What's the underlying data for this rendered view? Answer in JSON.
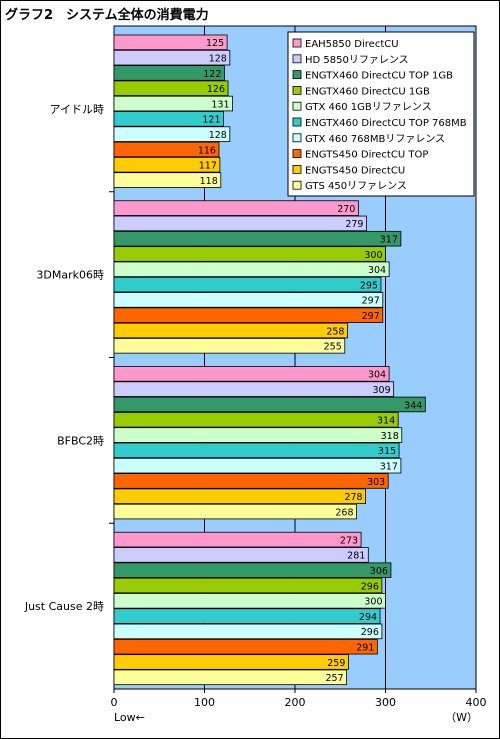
{
  "title": "グラフ2　システム全体の消費電力",
  "chart_data": {
    "type": "bar",
    "orientation": "horizontal",
    "title": "グラフ2　システム全体の消費電力",
    "categories": [
      "アイドル時",
      "3DMark06時",
      "BFBC2時",
      "Just Cause 2時"
    ],
    "series": [
      {
        "name": "EAH5850 DirectCU",
        "color": "#ff99cc",
        "values": [
          125,
          270,
          304,
          273
        ]
      },
      {
        "name": "HD 5850リファレンス",
        "color": "#ccccff",
        "values": [
          128,
          279,
          309,
          281
        ]
      },
      {
        "name": "ENGTX460 DirectCU TOP 1GB",
        "color": "#339966",
        "values": [
          122,
          317,
          344,
          306
        ]
      },
      {
        "name": "ENGTX460 DirectCU 1GB",
        "color": "#99cc00",
        "values": [
          126,
          300,
          314,
          296
        ]
      },
      {
        "name": "GTX 460 1GBリファレンス",
        "color": "#ccffcc",
        "values": [
          131,
          304,
          318,
          300
        ]
      },
      {
        "name": "ENGTX460 DirectCU TOP 768MB",
        "color": "#33cccc",
        "values": [
          121,
          295,
          315,
          294
        ]
      },
      {
        "name": "GTX 460 768MBリファレンス",
        "color": "#ccffff",
        "values": [
          128,
          297,
          317,
          296
        ]
      },
      {
        "name": "ENGTS450 DirectCU TOP",
        "color": "#ff6600",
        "values": [
          116,
          297,
          303,
          291
        ]
      },
      {
        "name": "ENGTS450 DirectCU",
        "color": "#ffcc00",
        "values": [
          117,
          258,
          278,
          259
        ]
      },
      {
        "name": "GTS 450リファレンス",
        "color": "#ffff99",
        "values": [
          118,
          255,
          268,
          257
        ]
      }
    ],
    "xlim": [
      0,
      400
    ],
    "xticks": [
      0,
      100,
      200,
      300,
      400
    ],
    "xlabel_left": "Low←",
    "xlabel_unit": "（W）",
    "grid": true,
    "plot_background": "#99ccff",
    "legend_position": "top-right"
  }
}
